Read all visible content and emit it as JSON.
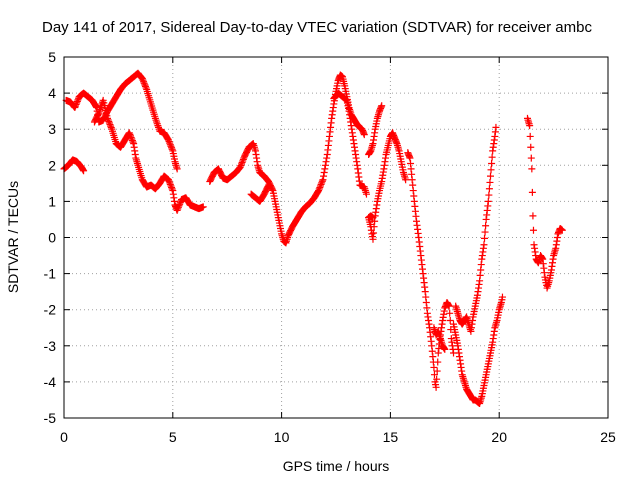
{
  "chart_data": {
    "type": "scatter",
    "title": "Day 141 of 2017, Sidereal Day-to-day VTEC variation (SDTVAR) for receiver ambc",
    "xlabel": "GPS time / hours",
    "ylabel": "SDTVAR / TECUs",
    "xlim": [
      0,
      25
    ],
    "ylim": [
      -5,
      5
    ],
    "xticks": [
      0,
      5,
      10,
      15,
      20,
      25
    ],
    "yticks": [
      -5,
      -4,
      -3,
      -2,
      -1,
      0,
      1,
      2,
      3,
      4,
      5
    ],
    "grid": true,
    "legend": "none",
    "marker": "+",
    "color": "#ff0000",
    "segments": [
      [
        [
          0.0,
          1.9
        ],
        [
          0.2,
          2.0
        ],
        [
          0.4,
          2.15
        ],
        [
          0.6,
          2.1
        ],
        [
          0.8,
          1.95
        ],
        [
          0.9,
          1.85
        ]
      ],
      [
        [
          0.1,
          3.8
        ],
        [
          0.3,
          3.75
        ],
        [
          0.5,
          3.6
        ],
        [
          0.7,
          3.9
        ],
        [
          0.9,
          4.0
        ],
        [
          1.1,
          3.9
        ],
        [
          1.3,
          3.8
        ],
        [
          1.5,
          3.6
        ],
        [
          1.6,
          3.2
        ],
        [
          1.8,
          3.25
        ],
        [
          2.0,
          3.5
        ],
        [
          2.2,
          3.7
        ],
        [
          2.4,
          3.9
        ],
        [
          2.6,
          4.1
        ],
        [
          2.8,
          4.25
        ],
        [
          3.0,
          4.35
        ],
        [
          3.2,
          4.45
        ],
        [
          3.4,
          4.55
        ],
        [
          3.6,
          4.4
        ],
        [
          3.8,
          4.1
        ],
        [
          4.0,
          3.7
        ],
        [
          4.2,
          3.3
        ],
        [
          4.4,
          2.95
        ],
        [
          4.6,
          2.9
        ],
        [
          4.8,
          2.7
        ],
        [
          5.0,
          2.4
        ],
        [
          5.1,
          2.1
        ],
        [
          5.2,
          1.9
        ]
      ],
      [
        [
          1.4,
          3.2
        ],
        [
          1.6,
          3.45
        ],
        [
          1.8,
          3.8
        ],
        [
          2.0,
          3.3
        ],
        [
          2.2,
          3.0
        ],
        [
          2.4,
          2.6
        ],
        [
          2.6,
          2.5
        ],
        [
          2.8,
          2.7
        ],
        [
          3.0,
          2.9
        ],
        [
          3.2,
          2.6
        ],
        [
          3.3,
          2.2
        ],
        [
          3.4,
          2.0
        ],
        [
          3.6,
          1.6
        ],
        [
          3.8,
          1.4
        ],
        [
          4.0,
          1.45
        ],
        [
          4.2,
          1.35
        ],
        [
          4.4,
          1.5
        ],
        [
          4.6,
          1.7
        ],
        [
          4.8,
          1.6
        ],
        [
          5.0,
          1.3
        ],
        [
          5.1,
          0.9
        ],
        [
          5.2,
          0.75
        ],
        [
          5.4,
          1.05
        ],
        [
          5.6,
          1.1
        ],
        [
          5.8,
          0.9
        ],
        [
          6.0,
          0.85
        ],
        [
          6.2,
          0.8
        ],
        [
          6.4,
          0.85
        ]
      ],
      [
        [
          6.7,
          1.55
        ],
        [
          6.9,
          1.8
        ],
        [
          7.1,
          1.9
        ],
        [
          7.3,
          1.65
        ],
        [
          7.5,
          1.6
        ],
        [
          7.7,
          1.7
        ],
        [
          7.9,
          1.8
        ],
        [
          8.1,
          1.95
        ],
        [
          8.3,
          2.25
        ],
        [
          8.5,
          2.5
        ],
        [
          8.7,
          2.6
        ],
        [
          8.8,
          2.4
        ],
        [
          8.9,
          2.0
        ],
        [
          9.0,
          1.8
        ],
        [
          9.2,
          1.7
        ],
        [
          9.4,
          1.55
        ],
        [
          9.6,
          1.3
        ],
        [
          9.7,
          1.0
        ],
        [
          9.8,
          0.7
        ],
        [
          9.9,
          0.4
        ],
        [
          10.0,
          0.1
        ],
        [
          10.1,
          -0.1
        ],
        [
          10.2,
          -0.15
        ],
        [
          10.3,
          0.05
        ],
        [
          10.5,
          0.3
        ],
        [
          10.7,
          0.5
        ],
        [
          10.9,
          0.7
        ],
        [
          11.1,
          0.85
        ],
        [
          11.3,
          0.95
        ],
        [
          11.5,
          1.1
        ],
        [
          11.7,
          1.3
        ],
        [
          11.9,
          1.6
        ],
        [
          12.1,
          2.3
        ],
        [
          12.2,
          2.8
        ],
        [
          12.3,
          3.3
        ],
        [
          12.4,
          3.7
        ],
        [
          12.5,
          4.05
        ],
        [
          12.6,
          4.35
        ],
        [
          12.7,
          4.5
        ],
        [
          12.8,
          4.45
        ],
        [
          12.9,
          4.2
        ],
        [
          13.0,
          3.9
        ],
        [
          13.1,
          3.6
        ],
        [
          13.2,
          3.4
        ],
        [
          13.3,
          3.3
        ],
        [
          13.4,
          3.2
        ],
        [
          13.5,
          3.1
        ],
        [
          13.7,
          3.0
        ],
        [
          13.8,
          2.85
        ]
      ],
      [
        [
          8.6,
          1.2
        ],
        [
          8.8,
          1.1
        ],
        [
          9.0,
          1.0
        ],
        [
          9.2,
          1.2
        ],
        [
          9.4,
          1.45
        ]
      ],
      [
        [
          12.4,
          3.85
        ],
        [
          12.6,
          4.0
        ],
        [
          12.8,
          3.9
        ],
        [
          13.0,
          3.8
        ],
        [
          13.1,
          3.5
        ],
        [
          13.2,
          3.1
        ],
        [
          13.3,
          2.7
        ],
        [
          13.4,
          2.3
        ],
        [
          13.5,
          1.9
        ],
        [
          13.6,
          1.45
        ],
        [
          13.8,
          1.4
        ],
        [
          13.9,
          1.2
        ]
      ],
      [
        [
          14.0,
          0.55
        ],
        [
          14.1,
          0.3
        ],
        [
          14.15,
          0.1
        ],
        [
          14.2,
          -0.05
        ],
        [
          14.25,
          0.3
        ],
        [
          14.3,
          0.6
        ],
        [
          14.4,
          1.0
        ],
        [
          14.5,
          1.3
        ],
        [
          14.6,
          1.55
        ],
        [
          14.7,
          1.9
        ],
        [
          14.8,
          2.3
        ],
        [
          14.9,
          2.55
        ],
        [
          15.0,
          2.8
        ],
        [
          15.1,
          2.9
        ],
        [
          15.2,
          2.75
        ],
        [
          15.3,
          2.6
        ],
        [
          15.4,
          2.4
        ],
        [
          15.5,
          2.1
        ],
        [
          15.6,
          1.8
        ],
        [
          15.7,
          1.6
        ]
      ],
      [
        [
          14.0,
          2.3
        ],
        [
          14.1,
          2.4
        ],
        [
          14.2,
          2.6
        ],
        [
          14.3,
          3.0
        ],
        [
          14.4,
          3.3
        ],
        [
          14.5,
          3.5
        ],
        [
          14.6,
          3.65
        ]
      ],
      [
        [
          14.0,
          0.55
        ],
        [
          14.1,
          0.6
        ],
        [
          14.2,
          0.55
        ]
      ],
      [
        [
          15.8,
          2.35
        ],
        [
          15.9,
          2.2
        ],
        [
          16.0,
          1.6
        ],
        [
          16.1,
          1.0
        ],
        [
          16.2,
          0.45
        ],
        [
          16.3,
          0.0
        ],
        [
          16.4,
          -0.5
        ],
        [
          16.5,
          -1.0
        ],
        [
          16.6,
          -1.5
        ],
        [
          16.7,
          -2.1
        ],
        [
          16.8,
          -2.5
        ],
        [
          16.9,
          -3.0
        ],
        [
          17.0,
          -3.6
        ],
        [
          17.05,
          -4.0
        ],
        [
          17.1,
          -4.15
        ],
        [
          17.15,
          -3.7
        ],
        [
          17.2,
          -3.2
        ],
        [
          17.3,
          -2.7
        ],
        [
          17.4,
          -2.3
        ],
        [
          17.5,
          -1.95
        ],
        [
          17.6,
          -1.8
        ],
        [
          17.7,
          -1.9
        ],
        [
          17.75,
          -2.3
        ],
        [
          17.8,
          -2.8
        ],
        [
          17.9,
          -3.2
        ]
      ],
      [
        [
          17.0,
          -2.5
        ],
        [
          17.1,
          -2.7
        ],
        [
          17.2,
          -2.6
        ],
        [
          17.3,
          -2.8
        ],
        [
          17.4,
          -3.0
        ],
        [
          17.5,
          -3.1
        ]
      ],
      [
        [
          18.0,
          -1.9
        ],
        [
          18.1,
          -2.1
        ],
        [
          18.2,
          -2.3
        ],
        [
          18.3,
          -2.4
        ],
        [
          18.4,
          -2.3
        ],
        [
          18.5,
          -2.2
        ],
        [
          18.6,
          -2.4
        ],
        [
          18.7,
          -2.6
        ],
        [
          18.8,
          -2.2
        ],
        [
          18.9,
          -1.9
        ],
        [
          19.0,
          -1.6
        ],
        [
          19.1,
          -1.2
        ],
        [
          19.2,
          -0.6
        ],
        [
          19.3,
          -0.2
        ],
        [
          19.4,
          0.5
        ],
        [
          19.5,
          1.0
        ],
        [
          19.6,
          1.7
        ],
        [
          19.7,
          2.4
        ],
        [
          19.8,
          2.8
        ],
        [
          19.85,
          3.05
        ]
      ],
      [
        [
          17.9,
          -2.4
        ],
        [
          18.0,
          -2.7
        ],
        [
          18.1,
          -3.0
        ],
        [
          18.2,
          -3.4
        ],
        [
          18.3,
          -3.8
        ],
        [
          18.4,
          -4.0
        ],
        [
          18.5,
          -4.2
        ],
        [
          18.6,
          -4.3
        ],
        [
          18.7,
          -4.4
        ],
        [
          18.8,
          -4.5
        ],
        [
          18.9,
          -4.5
        ],
        [
          19.0,
          -4.55
        ],
        [
          19.1,
          -4.6
        ],
        [
          19.2,
          -4.4
        ],
        [
          19.3,
          -4.1
        ],
        [
          19.4,
          -3.8
        ],
        [
          19.5,
          -3.5
        ],
        [
          19.6,
          -3.2
        ],
        [
          19.7,
          -2.9
        ],
        [
          19.8,
          -2.5
        ],
        [
          19.9,
          -2.3
        ],
        [
          20.0,
          -2.0
        ],
        [
          20.1,
          -1.8
        ],
        [
          20.15,
          -1.65
        ]
      ],
      [
        [
          21.3,
          3.3
        ],
        [
          21.4,
          3.1
        ],
        [
          21.5,
          1.9
        ],
        [
          21.55,
          0.6
        ],
        [
          21.6,
          -0.2
        ],
        [
          21.7,
          -0.6
        ],
        [
          21.8,
          -0.7
        ],
        [
          21.9,
          -0.5
        ],
        [
          22.0,
          -0.6
        ],
        [
          22.1,
          -1.1
        ],
        [
          22.2,
          -1.4
        ],
        [
          22.3,
          -1.2
        ],
        [
          22.4,
          -0.9
        ],
        [
          22.5,
          -0.5
        ],
        [
          22.6,
          -0.3
        ],
        [
          22.7,
          0.1
        ],
        [
          22.8,
          0.25
        ],
        [
          22.9,
          0.2
        ]
      ]
    ]
  }
}
